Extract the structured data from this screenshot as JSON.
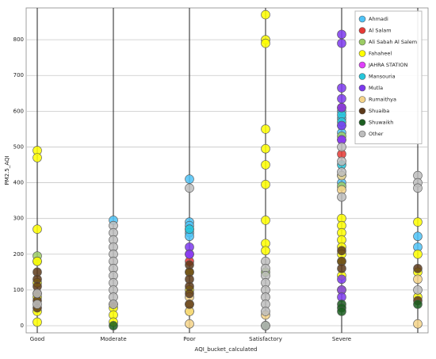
{
  "chart_data": {
    "type": "scatter",
    "x_label": "AQI_bucket_calculated",
    "y_label": "PM2.5_AQI",
    "categories": [
      "Good",
      "Moderate",
      "Poor",
      "Satisfactory",
      "Severe",
      null
    ],
    "ylim": [
      -20,
      889
    ],
    "yticks": [
      0,
      100,
      200,
      300,
      400,
      500,
      600,
      700,
      800
    ],
    "grid": true,
    "legend": "upper right",
    "series": [
      {
        "name": "Ahmadi",
        "color": "#4fc3f7",
        "x": [
          2,
          2,
          2,
          2,
          2,
          2,
          1,
          4,
          4,
          4,
          4,
          4,
          4,
          5,
          5
        ],
        "values": [
          410,
          290,
          280,
          270,
          260,
          250,
          295,
          600,
          580,
          560,
          540,
          420,
          400,
          250,
          220
        ]
      },
      {
        "name": "Al Salam",
        "color": "#e53935",
        "x": [
          4,
          4,
          2
        ],
        "values": [
          610,
          480,
          180
        ]
      },
      {
        "name": "Ali Sabah Al Salem",
        "color": "#9ccc65",
        "x": [
          0,
          0,
          4,
          4,
          3
        ],
        "values": [
          195,
          180,
          530,
          390,
          150
        ]
      },
      {
        "name": "Fahaheel",
        "color": "#ffff00",
        "x": [
          0,
          0,
          0,
          0,
          0,
          0,
          0,
          0,
          1,
          1,
          1,
          2,
          2,
          2,
          2,
          3,
          3,
          3,
          3,
          3,
          3,
          3,
          3,
          3,
          3,
          4,
          4,
          4,
          4,
          4,
          4,
          4,
          4,
          4,
          5,
          5,
          5,
          5
        ],
        "values": [
          490,
          470,
          270,
          180,
          120,
          80,
          40,
          10,
          50,
          30,
          10,
          150,
          100,
          60,
          40,
          870,
          800,
          790,
          550,
          495,
          450,
          395,
          295,
          230,
          210,
          300,
          280,
          260,
          240,
          220,
          200,
          180,
          140,
          100,
          290,
          200,
          150,
          80
        ]
      },
      {
        "name": "JAHRA STATION",
        "color": "#e040fb",
        "x": [
          2,
          4
        ],
        "values": [
          200,
          520
        ]
      },
      {
        "name": "Mansouria",
        "color": "#26c6da",
        "x": [
          4,
          4,
          4,
          2
        ],
        "values": [
          590,
          570,
          450,
          270
        ]
      },
      {
        "name": "Mutla",
        "color": "#7c3aed",
        "x": [
          4,
          4,
          4,
          4,
          4,
          4,
          4,
          4,
          4,
          4,
          2,
          2
        ],
        "values": [
          815,
          790,
          665,
          635,
          610,
          560,
          520,
          130,
          100,
          80,
          220,
          200
        ]
      },
      {
        "name": "Rumaithya",
        "color": "#f5d48a",
        "x": [
          2,
          2,
          2,
          2,
          3,
          4,
          4,
          5,
          5
        ],
        "values": [
          80,
          60,
          40,
          5,
          30,
          420,
          380,
          130,
          5
        ]
      },
      {
        "name": "Shuaiba",
        "color": "#5d3a1a",
        "x": [
          0,
          0,
          0,
          0,
          0,
          0,
          2,
          2,
          2,
          2,
          2,
          2,
          1,
          4,
          4,
          4,
          5,
          5
        ],
        "values": [
          150,
          130,
          110,
          90,
          70,
          50,
          170,
          150,
          130,
          110,
          90,
          60,
          60,
          210,
          180,
          160,
          160,
          70
        ]
      },
      {
        "name": "Shuwaikh",
        "color": "#1b5e20",
        "x": [
          4,
          4,
          4,
          5,
          1,
          3
        ],
        "values": [
          60,
          50,
          40,
          60,
          0,
          0
        ]
      },
      {
        "name": "Other",
        "color": "#bdbdbd",
        "x": [
          0,
          0,
          1,
          1,
          1,
          1,
          1,
          1,
          1,
          1,
          1,
          1,
          1,
          1,
          2,
          3,
          3,
          3,
          3,
          3,
          3,
          3,
          3,
          3,
          4,
          4,
          4,
          4,
          5,
          5,
          5,
          5
        ],
        "values": [
          90,
          60,
          280,
          260,
          240,
          220,
          200,
          180,
          160,
          140,
          120,
          100,
          80,
          60,
          385,
          180,
          160,
          140,
          120,
          100,
          80,
          60,
          40,
          0,
          500,
          460,
          430,
          360,
          420,
          400,
          385,
          100
        ]
      }
    ]
  }
}
